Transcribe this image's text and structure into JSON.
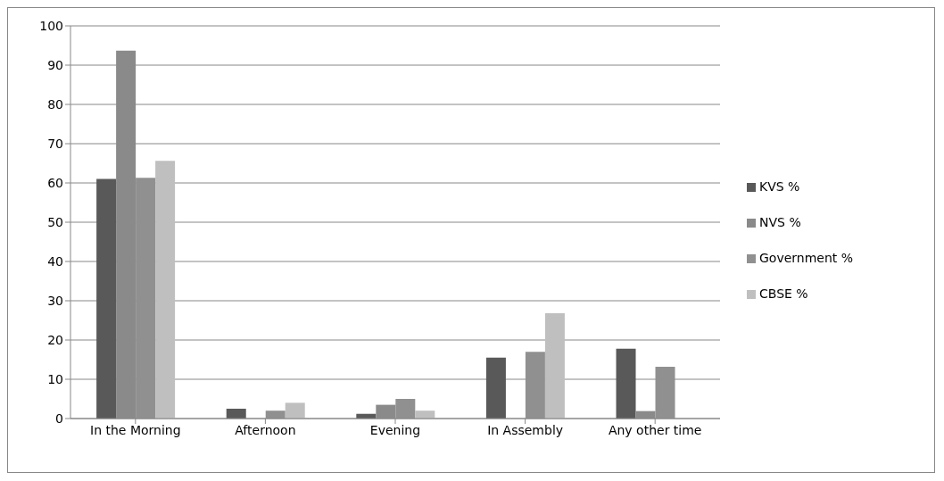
{
  "chart_data": {
    "type": "bar",
    "categories": [
      "In the Morning",
      "Afternoon",
      "Evening",
      "In Assembly",
      "Any other time"
    ],
    "series": [
      {
        "name": "KVS %",
        "color": "#595959",
        "values": [
          61,
          2.5,
          1.2,
          15.5,
          17.8
        ]
      },
      {
        "name": "NVS %",
        "color": "#8a8a8a",
        "values": [
          93.7,
          0,
          3.5,
          0,
          1.9
        ]
      },
      {
        "name": "Government  %",
        "color": "#909090",
        "values": [
          61.3,
          2,
          5,
          17,
          13.2
        ]
      },
      {
        "name": "CBSE %",
        "color": "#bfbfbf",
        "values": [
          65.6,
          4,
          2,
          26.8,
          0
        ]
      }
    ],
    "ylim": [
      0,
      100
    ],
    "yticks": [
      0,
      10,
      20,
      30,
      40,
      50,
      60,
      70,
      80,
      90,
      100
    ],
    "grid": "y",
    "legend": "right"
  }
}
